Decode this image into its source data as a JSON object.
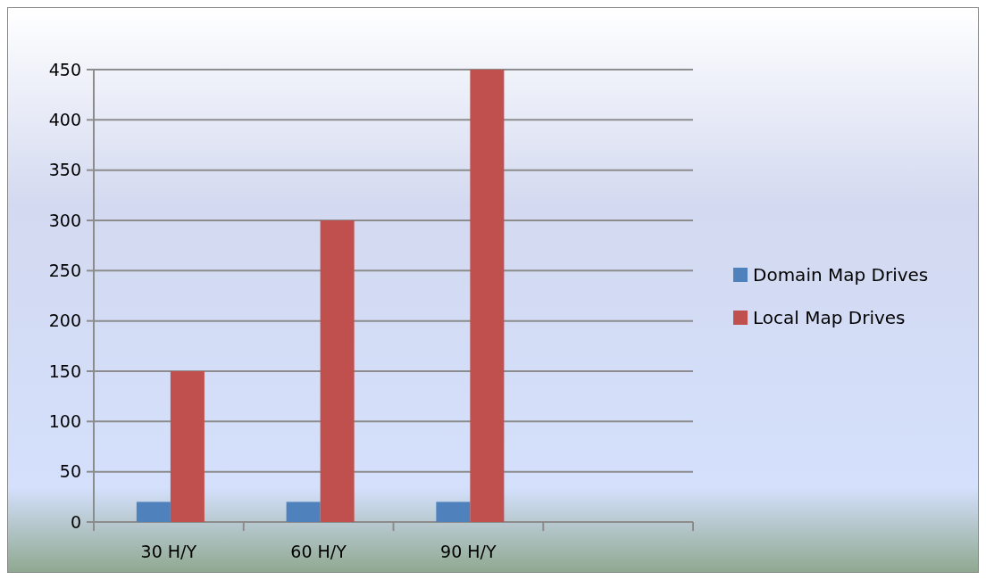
{
  "chart_data": {
    "type": "bar",
    "categories": [
      "30 H/Y",
      "60 H/Y",
      "90 H/Y",
      null
    ],
    "series": [
      {
        "name": "Domain Map Drives",
        "color": "#4f81bd",
        "values": [
          20,
          20,
          20,
          null
        ]
      },
      {
        "name": "Local Map Drives",
        "color": "#c0504d",
        "values": [
          150,
          300,
          450,
          null
        ]
      }
    ],
    "ylim": [
      0,
      450
    ],
    "yticks": [
      0,
      50,
      100,
      150,
      200,
      250,
      300,
      350,
      400,
      450
    ],
    "grid": "y",
    "legend": "right"
  }
}
